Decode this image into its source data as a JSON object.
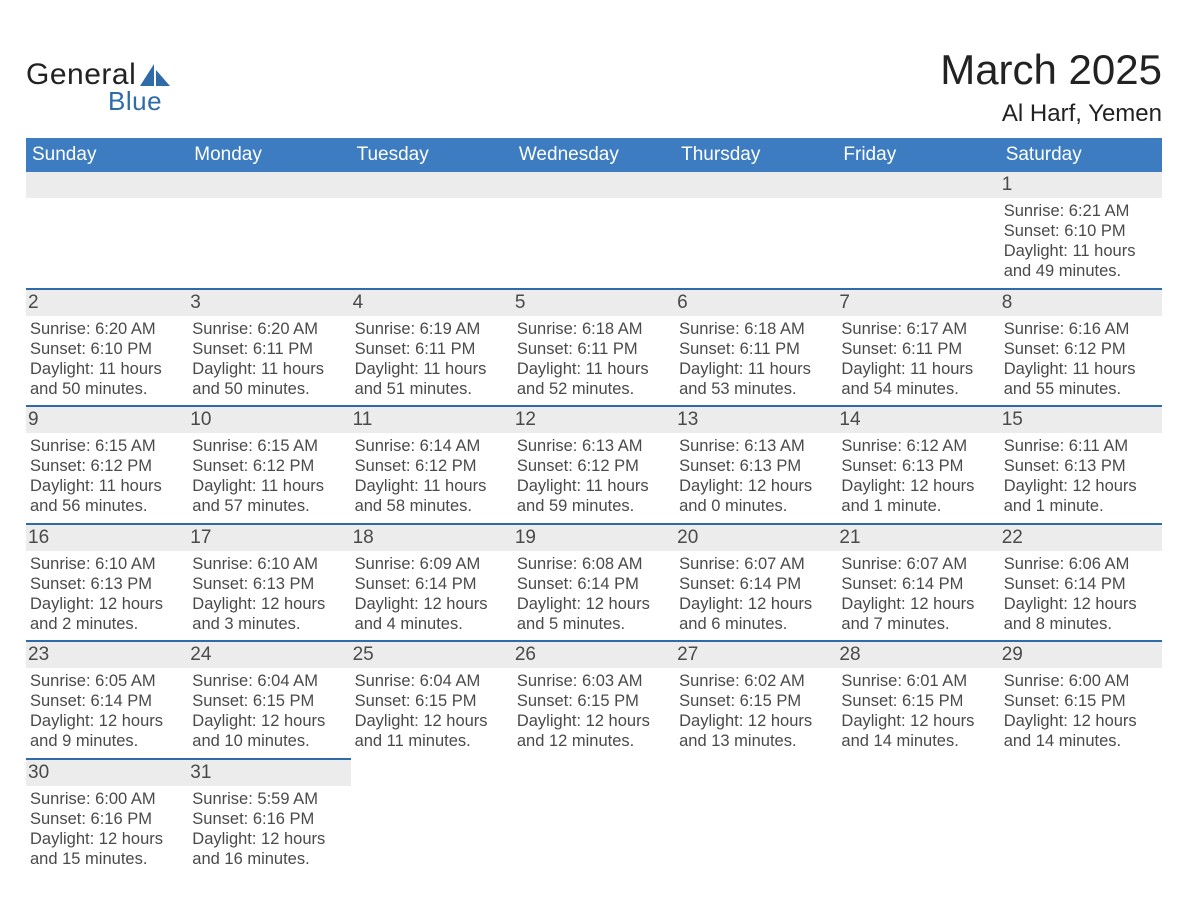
{
  "brand": {
    "word1": "General",
    "word2": "Blue",
    "color": "#2f6aa9"
  },
  "title": {
    "month": "March 2025",
    "location": "Al Harf, Yemen"
  },
  "weekdays": [
    "Sunday",
    "Monday",
    "Tuesday",
    "Wednesday",
    "Thursday",
    "Friday",
    "Saturday"
  ],
  "style": {
    "header_bg": "#3d7cc0",
    "header_text": "#ffffff",
    "daybar_bg": "#ececec",
    "border_blue": "#2f6aa9",
    "text": "#4a4a4a",
    "title_fontsize": 42,
    "location_fontsize": 24,
    "weekday_fontsize": 19,
    "body_fontsize": 16.5
  },
  "weeks": [
    [
      {
        "day": null
      },
      {
        "day": null
      },
      {
        "day": null
      },
      {
        "day": null
      },
      {
        "day": null
      },
      {
        "day": null
      },
      {
        "day": 1,
        "sunrise": "6:21 AM",
        "sunset": "6:10 PM",
        "daylight1": "Daylight: 11 hours",
        "daylight2": "and 49 minutes."
      }
    ],
    [
      {
        "day": 2,
        "sunrise": "6:20 AM",
        "sunset": "6:10 PM",
        "daylight1": "Daylight: 11 hours",
        "daylight2": "and 50 minutes."
      },
      {
        "day": 3,
        "sunrise": "6:20 AM",
        "sunset": "6:11 PM",
        "daylight1": "Daylight: 11 hours",
        "daylight2": "and 50 minutes."
      },
      {
        "day": 4,
        "sunrise": "6:19 AM",
        "sunset": "6:11 PM",
        "daylight1": "Daylight: 11 hours",
        "daylight2": "and 51 minutes."
      },
      {
        "day": 5,
        "sunrise": "6:18 AM",
        "sunset": "6:11 PM",
        "daylight1": "Daylight: 11 hours",
        "daylight2": "and 52 minutes."
      },
      {
        "day": 6,
        "sunrise": "6:18 AM",
        "sunset": "6:11 PM",
        "daylight1": "Daylight: 11 hours",
        "daylight2": "and 53 minutes."
      },
      {
        "day": 7,
        "sunrise": "6:17 AM",
        "sunset": "6:11 PM",
        "daylight1": "Daylight: 11 hours",
        "daylight2": "and 54 minutes."
      },
      {
        "day": 8,
        "sunrise": "6:16 AM",
        "sunset": "6:12 PM",
        "daylight1": "Daylight: 11 hours",
        "daylight2": "and 55 minutes."
      }
    ],
    [
      {
        "day": 9,
        "sunrise": "6:15 AM",
        "sunset": "6:12 PM",
        "daylight1": "Daylight: 11 hours",
        "daylight2": "and 56 minutes."
      },
      {
        "day": 10,
        "sunrise": "6:15 AM",
        "sunset": "6:12 PM",
        "daylight1": "Daylight: 11 hours",
        "daylight2": "and 57 minutes."
      },
      {
        "day": 11,
        "sunrise": "6:14 AM",
        "sunset": "6:12 PM",
        "daylight1": "Daylight: 11 hours",
        "daylight2": "and 58 minutes."
      },
      {
        "day": 12,
        "sunrise": "6:13 AM",
        "sunset": "6:12 PM",
        "daylight1": "Daylight: 11 hours",
        "daylight2": "and 59 minutes."
      },
      {
        "day": 13,
        "sunrise": "6:13 AM",
        "sunset": "6:13 PM",
        "daylight1": "Daylight: 12 hours",
        "daylight2": "and 0 minutes."
      },
      {
        "day": 14,
        "sunrise": "6:12 AM",
        "sunset": "6:13 PM",
        "daylight1": "Daylight: 12 hours",
        "daylight2": "and 1 minute."
      },
      {
        "day": 15,
        "sunrise": "6:11 AM",
        "sunset": "6:13 PM",
        "daylight1": "Daylight: 12 hours",
        "daylight2": "and 1 minute."
      }
    ],
    [
      {
        "day": 16,
        "sunrise": "6:10 AM",
        "sunset": "6:13 PM",
        "daylight1": "Daylight: 12 hours",
        "daylight2": "and 2 minutes."
      },
      {
        "day": 17,
        "sunrise": "6:10 AM",
        "sunset": "6:13 PM",
        "daylight1": "Daylight: 12 hours",
        "daylight2": "and 3 minutes."
      },
      {
        "day": 18,
        "sunrise": "6:09 AM",
        "sunset": "6:14 PM",
        "daylight1": "Daylight: 12 hours",
        "daylight2": "and 4 minutes."
      },
      {
        "day": 19,
        "sunrise": "6:08 AM",
        "sunset": "6:14 PM",
        "daylight1": "Daylight: 12 hours",
        "daylight2": "and 5 minutes."
      },
      {
        "day": 20,
        "sunrise": "6:07 AM",
        "sunset": "6:14 PM",
        "daylight1": "Daylight: 12 hours",
        "daylight2": "and 6 minutes."
      },
      {
        "day": 21,
        "sunrise": "6:07 AM",
        "sunset": "6:14 PM",
        "daylight1": "Daylight: 12 hours",
        "daylight2": "and 7 minutes."
      },
      {
        "day": 22,
        "sunrise": "6:06 AM",
        "sunset": "6:14 PM",
        "daylight1": "Daylight: 12 hours",
        "daylight2": "and 8 minutes."
      }
    ],
    [
      {
        "day": 23,
        "sunrise": "6:05 AM",
        "sunset": "6:14 PM",
        "daylight1": "Daylight: 12 hours",
        "daylight2": "and 9 minutes."
      },
      {
        "day": 24,
        "sunrise": "6:04 AM",
        "sunset": "6:15 PM",
        "daylight1": "Daylight: 12 hours",
        "daylight2": "and 10 minutes."
      },
      {
        "day": 25,
        "sunrise": "6:04 AM",
        "sunset": "6:15 PM",
        "daylight1": "Daylight: 12 hours",
        "daylight2": "and 11 minutes."
      },
      {
        "day": 26,
        "sunrise": "6:03 AM",
        "sunset": "6:15 PM",
        "daylight1": "Daylight: 12 hours",
        "daylight2": "and 12 minutes."
      },
      {
        "day": 27,
        "sunrise": "6:02 AM",
        "sunset": "6:15 PM",
        "daylight1": "Daylight: 12 hours",
        "daylight2": "and 13 minutes."
      },
      {
        "day": 28,
        "sunrise": "6:01 AM",
        "sunset": "6:15 PM",
        "daylight1": "Daylight: 12 hours",
        "daylight2": "and 14 minutes."
      },
      {
        "day": 29,
        "sunrise": "6:00 AM",
        "sunset": "6:15 PM",
        "daylight1": "Daylight: 12 hours",
        "daylight2": "and 14 minutes."
      }
    ],
    [
      {
        "day": 30,
        "sunrise": "6:00 AM",
        "sunset": "6:16 PM",
        "daylight1": "Daylight: 12 hours",
        "daylight2": "and 15 minutes."
      },
      {
        "day": 31,
        "sunrise": "5:59 AM",
        "sunset": "6:16 PM",
        "daylight1": "Daylight: 12 hours",
        "daylight2": "and 16 minutes."
      },
      {
        "day": null
      },
      {
        "day": null
      },
      {
        "day": null
      },
      {
        "day": null
      },
      {
        "day": null
      }
    ]
  ],
  "labels": {
    "sunrise_prefix": "Sunrise: ",
    "sunset_prefix": "Sunset: "
  }
}
